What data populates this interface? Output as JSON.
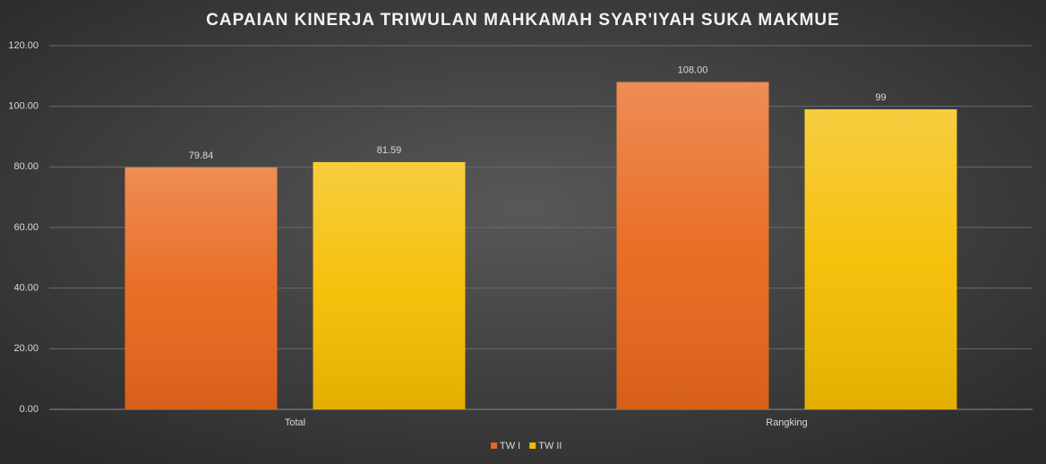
{
  "chart_data": {
    "type": "bar",
    "title": "CAPAIAN KINERJA TRIWULAN MAHKAMAH SYAR'IYAH SUKA MAKMUE",
    "categories": [
      "Total",
      "Rangking"
    ],
    "series": [
      {
        "name": "TW I",
        "color": "#e8671c",
        "values": [
          79.84,
          108
        ],
        "value_labels": [
          "79.84",
          "108.00"
        ]
      },
      {
        "name": "TW II",
        "color": "#f5bd00",
        "values": [
          81.59,
          99
        ],
        "value_labels": [
          "81.59",
          "99"
        ]
      }
    ],
    "ylim": [
      0,
      120
    ],
    "yticks": [
      {
        "value": 0,
        "label": "0.00"
      },
      {
        "value": 20,
        "label": "20.00"
      },
      {
        "value": 40,
        "label": "40.00"
      },
      {
        "value": 60,
        "label": "60.00"
      },
      {
        "value": 80,
        "label": "80.00"
      },
      {
        "value": 100,
        "label": "100.00"
      },
      {
        "value": 120,
        "label": "120.00"
      }
    ],
    "grid": true,
    "legend": "bottom"
  }
}
